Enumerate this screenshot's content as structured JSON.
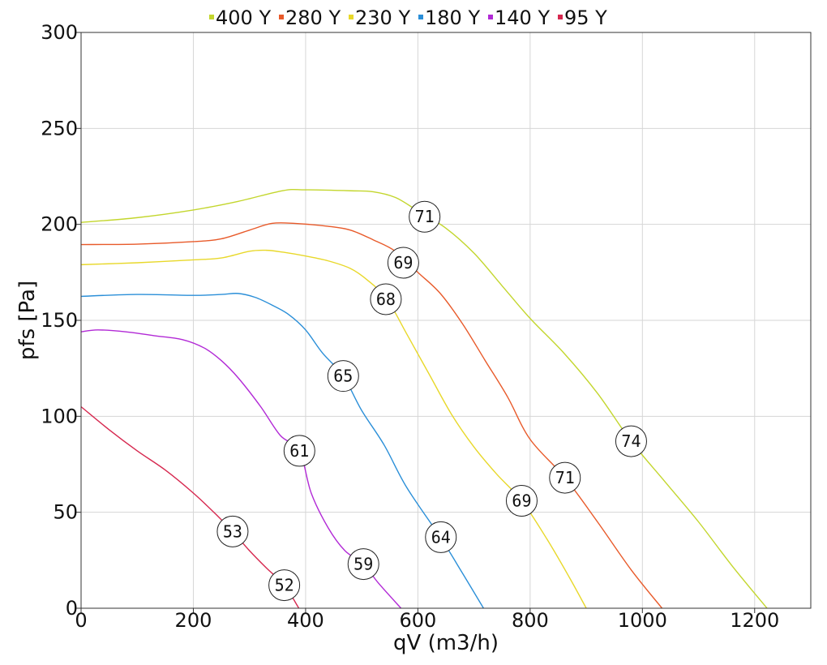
{
  "chart_data": {
    "type": "line",
    "xlabel": "qV (m3/h)",
    "ylabel": "pfs [Pa]",
    "xlim": [
      0,
      1300
    ],
    "ylim": [
      0,
      300
    ],
    "xticks": [
      0,
      200,
      400,
      600,
      800,
      1000,
      1200
    ],
    "yticks": [
      0,
      50,
      100,
      150,
      200,
      250,
      300
    ],
    "grid": true,
    "legend_position": "top",
    "series": [
      {
        "name": "400 Y",
        "color": "#c3d62d",
        "points": [
          [
            0,
            201
          ],
          [
            100,
            203.5
          ],
          [
            200,
            207.5
          ],
          [
            280,
            212
          ],
          [
            360,
            217.6
          ],
          [
            400,
            218
          ],
          [
            480,
            217.5
          ],
          [
            520,
            217
          ],
          [
            560,
            214
          ],
          [
            600,
            207
          ],
          [
            650,
            198
          ],
          [
            700,
            185
          ],
          [
            750,
            168
          ],
          [
            800,
            151
          ],
          [
            860,
            133
          ],
          [
            920,
            112
          ],
          [
            980,
            87
          ],
          [
            1040,
            66
          ],
          [
            1100,
            45
          ],
          [
            1160,
            22
          ],
          [
            1222,
            0
          ]
        ],
        "labels": [
          {
            "x": 612,
            "y": 204,
            "text": "71"
          },
          {
            "x": 980,
            "y": 87,
            "text": "74"
          }
        ]
      },
      {
        "name": "280 Y",
        "color": "#e85a2a",
        "points": [
          [
            0,
            189.5
          ],
          [
            100,
            189.7
          ],
          [
            200,
            191
          ],
          [
            250,
            192.5
          ],
          [
            300,
            197
          ],
          [
            340,
            200.5
          ],
          [
            380,
            200.5
          ],
          [
            440,
            199
          ],
          [
            480,
            197
          ],
          [
            520,
            192
          ],
          [
            560,
            186
          ],
          [
            600,
            175
          ],
          [
            640,
            164
          ],
          [
            680,
            148
          ],
          [
            720,
            129
          ],
          [
            760,
            110
          ],
          [
            800,
            88
          ],
          [
            862,
            68
          ],
          [
            920,
            45
          ],
          [
            980,
            20
          ],
          [
            1035,
            0
          ]
        ],
        "labels": [
          {
            "x": 574,
            "y": 180,
            "text": "69"
          },
          {
            "x": 862,
            "y": 68,
            "text": "71"
          }
        ]
      },
      {
        "name": "230 Y",
        "color": "#e8d82a",
        "points": [
          [
            0,
            179
          ],
          [
            100,
            180
          ],
          [
            200,
            181.5
          ],
          [
            250,
            182.5
          ],
          [
            300,
            186
          ],
          [
            330,
            186.5
          ],
          [
            360,
            185.5
          ],
          [
            400,
            183.5
          ],
          [
            440,
            181
          ],
          [
            480,
            177
          ],
          [
            510,
            171
          ],
          [
            545,
            161
          ],
          [
            580,
            143
          ],
          [
            620,
            122
          ],
          [
            660,
            101
          ],
          [
            700,
            84
          ],
          [
            740,
            70
          ],
          [
            785,
            56
          ],
          [
            830,
            36
          ],
          [
            870,
            16
          ],
          [
            900,
            0
          ]
        ],
        "labels": [
          {
            "x": 543,
            "y": 161,
            "text": "68"
          },
          {
            "x": 785,
            "y": 56,
            "text": "69"
          }
        ]
      },
      {
        "name": "180 Y",
        "color": "#2b8fd8",
        "points": [
          [
            0,
            162.5
          ],
          [
            100,
            163.5
          ],
          [
            200,
            163
          ],
          [
            250,
            163.5
          ],
          [
            280,
            164
          ],
          [
            310,
            162
          ],
          [
            340,
            158
          ],
          [
            370,
            153
          ],
          [
            400,
            145
          ],
          [
            430,
            133
          ],
          [
            467,
            121
          ],
          [
            500,
            103
          ],
          [
            540,
            85
          ],
          [
            580,
            63
          ],
          [
            640,
            37
          ],
          [
            680,
            18
          ],
          [
            717,
            0
          ]
        ],
        "labels": [
          {
            "x": 467,
            "y": 121,
            "text": "65"
          },
          {
            "x": 641,
            "y": 37,
            "text": "64"
          }
        ]
      },
      {
        "name": "140 Y",
        "color": "#b22ad6",
        "points": [
          [
            0,
            144
          ],
          [
            30,
            145
          ],
          [
            80,
            144
          ],
          [
            130,
            142
          ],
          [
            180,
            140
          ],
          [
            220,
            135.5
          ],
          [
            250,
            129
          ],
          [
            280,
            120
          ],
          [
            320,
            105
          ],
          [
            355,
            90
          ],
          [
            389,
            82
          ],
          [
            410,
            60
          ],
          [
            440,
            42
          ],
          [
            470,
            30
          ],
          [
            503,
            23
          ],
          [
            530,
            13
          ],
          [
            570,
            0
          ]
        ],
        "labels": [
          {
            "x": 389,
            "y": 82,
            "text": "61"
          },
          {
            "x": 503,
            "y": 23,
            "text": "59"
          }
        ]
      },
      {
        "name": "95 Y",
        "color": "#d6284f",
        "points": [
          [
            0,
            105
          ],
          [
            50,
            93
          ],
          [
            100,
            82
          ],
          [
            150,
            72
          ],
          [
            200,
            60
          ],
          [
            240,
            49
          ],
          [
            270,
            40
          ],
          [
            300,
            30
          ],
          [
            330,
            21
          ],
          [
            362,
            12
          ],
          [
            388,
            0
          ]
        ],
        "labels": [
          {
            "x": 270,
            "y": 40,
            "text": "53"
          },
          {
            "x": 362,
            "y": 12,
            "text": "52"
          }
        ]
      }
    ]
  }
}
